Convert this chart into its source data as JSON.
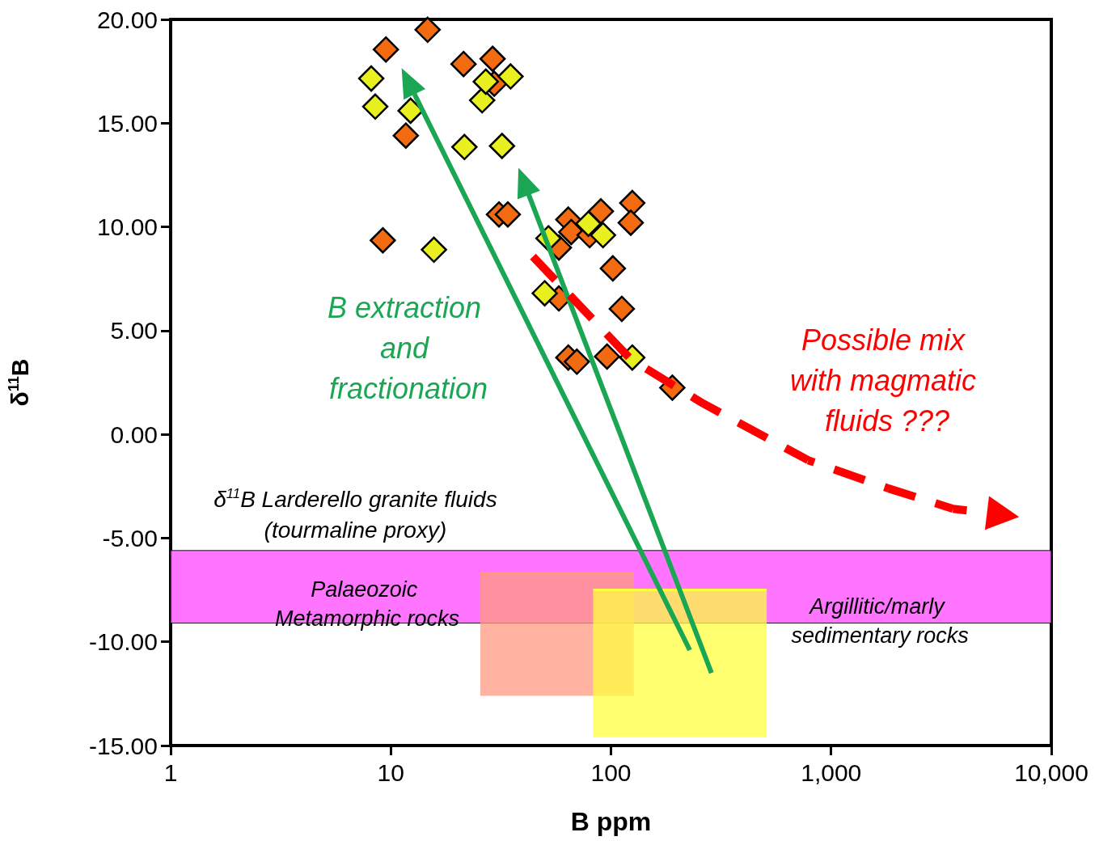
{
  "chart_data": {
    "type": "scatter",
    "xlabel": "B ppm",
    "ylabel": "δ$^{11}$B",
    "log": "x",
    "grid": false,
    "legend": false,
    "xlim": [
      1,
      10000
    ],
    "xticks": [
      1,
      10,
      100,
      {
        "value": 1000,
        "label": "1,000"
      },
      {
        "value": 10000,
        "label": "10,000"
      }
    ],
    "ylim": [
      -15,
      20
    ],
    "yticks": [
      {
        "value": -15,
        "label": "-15.00"
      },
      {
        "value": -10,
        "label": "-10.00"
      },
      {
        "value": -5,
        "label": "-5.00"
      },
      {
        "value": 0,
        "label": "0.00"
      },
      {
        "value": 5,
        "label": "5.00"
      },
      {
        "value": 10,
        "label": "10.00"
      },
      {
        "value": 15,
        "label": "15.00"
      },
      {
        "value": 20,
        "label": "20.00"
      }
    ],
    "bands": [
      {
        "axis": "y",
        "from": -5.6,
        "to": -9.1,
        "label": "δ$^{11}$B Larderello granite fluids (tourmaline proxy)",
        "color": "#ff66ff"
      }
    ],
    "series": [
      {
        "type": "line",
        "name": "Palaeozoic Metamorphic rocks",
        "color": "#ff9a80",
        "x": [
          25.5,
          127
        ],
        "values": [
          -6.7,
          -6.7
        ],
        "lower": [
          -12.6,
          -12.6
        ],
        "upper": [
          -6.7,
          -6.7
        ]
      },
      {
        "type": "line",
        "name": "Argillitic/marly sedimentary rocks",
        "color": "#ffff40",
        "x": [
          83,
          510
        ],
        "values": [
          -7.5,
          -7.5
        ],
        "lower": [
          -14.6,
          -14.6
        ],
        "upper": [
          -7.5,
          -7.5
        ]
      },
      {
        "type": "scatter",
        "marker": "diamond",
        "color": "#f26b10",
        "x": [
          9.5,
          14.7,
          21.4,
          29,
          29.5,
          11.7,
          9.2,
          31,
          34,
          64,
          90,
          125,
          123,
          66,
          58,
          80,
          102,
          112,
          58,
          64,
          70,
          96,
          190
        ],
        "values": [
          18.55,
          19.5,
          17.85,
          18.1,
          16.9,
          14.4,
          9.35,
          10.6,
          10.6,
          10.35,
          10.75,
          11.15,
          10.2,
          9.75,
          9.0,
          9.6,
          8.0,
          6.05,
          6.55,
          3.7,
          3.5,
          3.75,
          2.25
        ]
      },
      {
        "type": "scatter",
        "marker": "diamond",
        "color": "#e8f020",
        "x": [
          8.15,
          8.5,
          12.3,
          21.6,
          32,
          15.7,
          26,
          27,
          35,
          52,
          79,
          92,
          50,
          125
        ],
        "values": [
          17.15,
          15.8,
          15.6,
          13.85,
          13.9,
          8.9,
          16.1,
          17.0,
          17.25,
          9.45,
          10.15,
          9.6,
          6.8,
          3.7
        ]
      }
    ],
    "annotations": [
      "B extraction and fractionation",
      "Possible mix with magmatic fluids ???"
    ]
  }
}
